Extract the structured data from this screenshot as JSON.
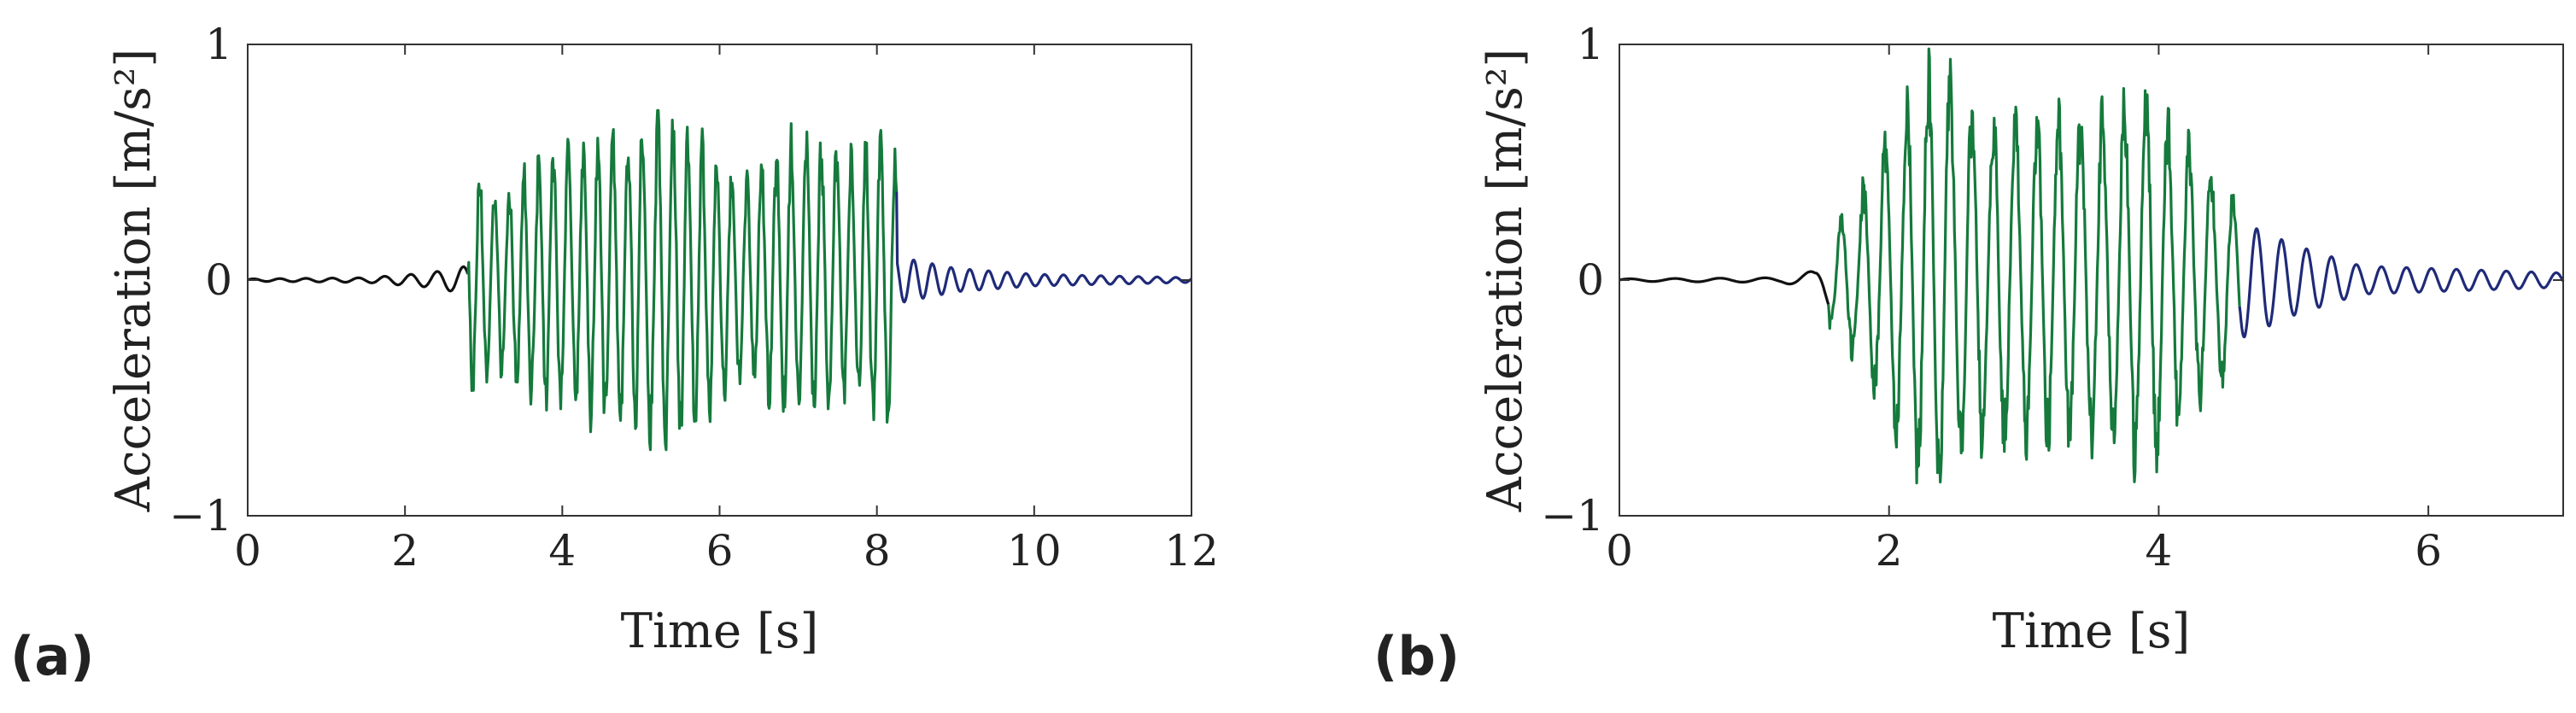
{
  "panel_labels": [
    "(a)",
    "(b)"
  ],
  "colors": {
    "pre": "#111111",
    "strong": "#157a3c",
    "post": "#1f2a78"
  },
  "chart_data": [
    {
      "type": "line",
      "panel": "(a)",
      "title": "",
      "xlabel": "Time [s]",
      "ylabel": "Acceleration [m/s²]",
      "xlim": [
        0,
        12
      ],
      "ylim": [
        -1,
        1
      ],
      "xticks": [
        0,
        2,
        4,
        6,
        8,
        10,
        12
      ],
      "yticks": [
        -1,
        0,
        1
      ],
      "xtick_labels": [
        "0",
        "2",
        "4",
        "6",
        "8",
        "10",
        "12"
      ],
      "ytick_labels": [
        "−1",
        "0",
        "1"
      ],
      "grid": false,
      "legend": "none",
      "signal": {
        "dt": 0.01,
        "strong_start": 2.8,
        "strong_end": 8.25,
        "pre_freq_hz": 3.0,
        "strong_freq_hz": 5.3,
        "post_freq_hz": 4.2,
        "pre_envelope": [
          [
            0,
            0.005
          ],
          [
            1.5,
            0.01
          ],
          [
            2.3,
            0.03
          ],
          [
            2.8,
            0.06
          ]
        ],
        "strong_envelope": [
          [
            2.8,
            0.5
          ],
          [
            3.2,
            0.4
          ],
          [
            3.8,
            0.55
          ],
          [
            4.5,
            0.6
          ],
          [
            5.2,
            0.72
          ],
          [
            5.8,
            0.6
          ],
          [
            6.3,
            0.45
          ],
          [
            7.0,
            0.63
          ],
          [
            7.6,
            0.55
          ],
          [
            8.2,
            0.6
          ]
        ],
        "post_envelope": [
          [
            8.25,
            0.1
          ],
          [
            9.0,
            0.05
          ],
          [
            10.0,
            0.025
          ],
          [
            12.0,
            0.01
          ]
        ],
        "peak_max": 0.72,
        "peak_min": -0.72
      }
    },
    {
      "type": "line",
      "panel": "(b)",
      "title": "",
      "xlabel": "Time [s]",
      "ylabel": "Acceleration [m/s²]",
      "xlim": [
        0,
        7
      ],
      "ylim": [
        -1,
        1
      ],
      "xticks": [
        0,
        2,
        4,
        6
      ],
      "yticks": [
        -1,
        0,
        1
      ],
      "xtick_labels": [
        "0",
        "2",
        "4",
        "6"
      ],
      "ytick_labels": [
        "−1",
        "0",
        "1"
      ],
      "grid": false,
      "legend": "none",
      "signal": {
        "dt": 0.005,
        "strong_start": 1.55,
        "strong_end": 4.6,
        "pre_freq_hz": 3.0,
        "strong_freq_hz": 6.2,
        "post_freq_hz": 5.4,
        "pre_envelope": [
          [
            0,
            0.005
          ],
          [
            1.2,
            0.01
          ],
          [
            1.45,
            0.04
          ],
          [
            1.55,
            0.12
          ]
        ],
        "strong_envelope": [
          [
            1.55,
            0.2
          ],
          [
            1.75,
            0.35
          ],
          [
            2.0,
            0.65
          ],
          [
            2.35,
            0.95
          ],
          [
            2.6,
            0.75
          ],
          [
            3.0,
            0.7
          ],
          [
            3.5,
            0.72
          ],
          [
            3.9,
            0.85
          ],
          [
            4.2,
            0.6
          ],
          [
            4.6,
            0.35
          ]
        ],
        "post_envelope": [
          [
            4.6,
            0.25
          ],
          [
            5.0,
            0.15
          ],
          [
            5.5,
            0.06
          ],
          [
            7.0,
            0.03
          ]
        ],
        "peak_max": 1.0,
        "peak_min": -0.93
      }
    }
  ]
}
